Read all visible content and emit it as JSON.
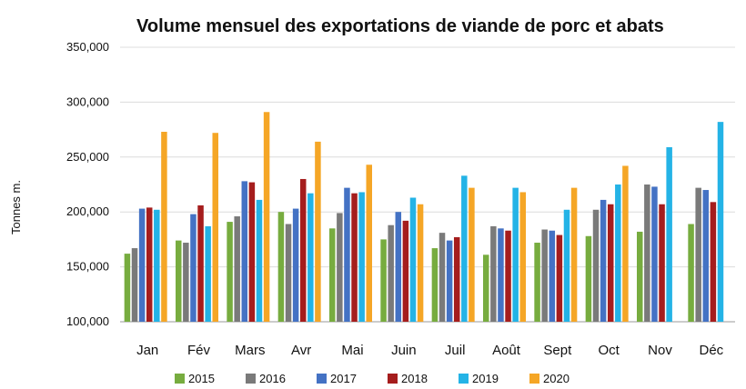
{
  "chart_data": {
    "type": "bar",
    "title": "Volume mensuel des exportations de viande de porc et abats",
    "xlabel": "",
    "ylabel": "Tonnes m.",
    "ylim": [
      100000,
      350000
    ],
    "yticks": [
      "100,000",
      "150,000",
      "200,000",
      "250,000",
      "300,000",
      "350,000"
    ],
    "ytick_values": [
      100000,
      150000,
      200000,
      250000,
      300000,
      350000
    ],
    "grid": true,
    "legend_position": "bottom",
    "categories": [
      "Jan",
      "Fév",
      "Mars",
      "Avr",
      "Mai",
      "Juin",
      "Juil",
      "Août",
      "Sept",
      "Oct",
      "Nov",
      "Déc"
    ],
    "series": [
      {
        "name": "2015",
        "color": "#77ac3f",
        "values": [
          162000,
          174000,
          191000,
          200000,
          185000,
          175000,
          167000,
          161000,
          172000,
          178000,
          182000,
          189000
        ]
      },
      {
        "name": "2016",
        "color": "#7a7a7a",
        "values": [
          167000,
          172000,
          196000,
          189000,
          199000,
          188000,
          181000,
          187000,
          184000,
          202000,
          225000,
          222000
        ]
      },
      {
        "name": "2017",
        "color": "#4472c4",
        "values": [
          203000,
          198000,
          228000,
          203000,
          222000,
          200000,
          174000,
          185000,
          183000,
          211000,
          223000,
          220000
        ]
      },
      {
        "name": "2018",
        "color": "#a51d1d",
        "values": [
          204000,
          206000,
          227000,
          230000,
          217000,
          192000,
          177000,
          183000,
          179000,
          207000,
          207000,
          209000
        ]
      },
      {
        "name": "2019",
        "color": "#24b3e6",
        "values": [
          202000,
          187000,
          211000,
          217000,
          218000,
          213000,
          233000,
          222000,
          202000,
          225000,
          259000,
          282000
        ]
      },
      {
        "name": "2020",
        "color": "#f5a626",
        "values": [
          273000,
          272000,
          291000,
          264000,
          243000,
          207000,
          222000,
          218000,
          222000,
          242000,
          null,
          null
        ]
      }
    ]
  }
}
